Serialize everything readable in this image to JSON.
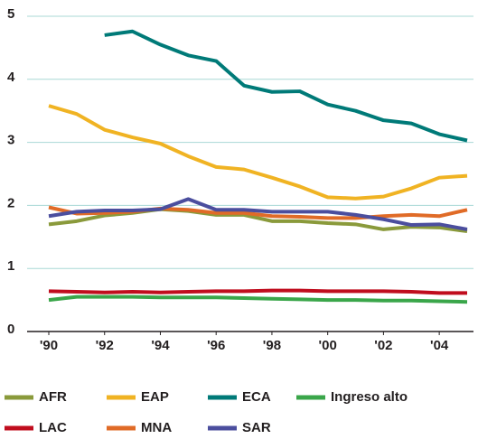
{
  "chart_data": {
    "type": "line",
    "x": [
      1990,
      1991,
      1992,
      1993,
      1994,
      1995,
      1996,
      1997,
      1998,
      1999,
      2000,
      2001,
      2002,
      2003,
      2004,
      2005
    ],
    "xlim": [
      1990,
      2005
    ],
    "xticks": [
      {
        "value": 1990,
        "label": "'90"
      },
      {
        "value": 1992,
        "label": "'92"
      },
      {
        "value": 1994,
        "label": "'94"
      },
      {
        "value": 1996,
        "label": "'96"
      },
      {
        "value": 1998,
        "label": "'98"
      },
      {
        "value": 2000,
        "label": "'00"
      },
      {
        "value": 2002,
        "label": "'02"
      },
      {
        "value": 2004,
        "label": "'04"
      }
    ],
    "ylim": [
      0,
      5
    ],
    "yticks": [
      0,
      1,
      2,
      3,
      4,
      5
    ],
    "grid": true,
    "series": [
      {
        "name": "AFR",
        "color": "#8a9a3b",
        "values": [
          1.7,
          1.75,
          1.84,
          1.88,
          1.94,
          1.91,
          1.85,
          1.85,
          1.75,
          1.75,
          1.72,
          1.7,
          1.62,
          1.66,
          1.65,
          1.59
        ]
      },
      {
        "name": "EAP",
        "color": "#f0b323",
        "values": [
          3.58,
          3.45,
          3.2,
          3.08,
          2.98,
          2.78,
          2.61,
          2.57,
          2.44,
          2.3,
          2.13,
          2.11,
          2.14,
          2.27,
          2.44,
          2.47
        ]
      },
      {
        "name": "ECA",
        "color": "#007a78",
        "values": [
          null,
          null,
          4.7,
          4.76,
          4.55,
          4.38,
          4.29,
          3.9,
          3.8,
          3.81,
          3.6,
          3.5,
          3.35,
          3.3,
          3.13,
          3.03
        ]
      },
      {
        "name": "Ingreso alto",
        "color": "#3aa64a",
        "values": [
          0.5,
          0.55,
          0.55,
          0.55,
          0.54,
          0.54,
          0.54,
          0.53,
          0.52,
          0.51,
          0.5,
          0.5,
          0.49,
          0.49,
          0.48,
          0.47
        ]
      },
      {
        "name": "LAC",
        "color": "#c00d1e",
        "values": [
          0.64,
          0.63,
          0.62,
          0.63,
          0.62,
          0.63,
          0.64,
          0.64,
          0.65,
          0.65,
          0.64,
          0.64,
          0.64,
          0.63,
          0.61,
          0.61
        ]
      },
      {
        "name": "MNA",
        "color": "#e06b27",
        "values": [
          1.97,
          1.87,
          1.88,
          1.9,
          1.95,
          1.93,
          1.88,
          1.88,
          1.83,
          1.82,
          1.8,
          1.8,
          1.83,
          1.85,
          1.83,
          1.93
        ]
      },
      {
        "name": "SAR",
        "color": "#4b4e9e",
        "values": [
          1.83,
          1.9,
          1.92,
          1.92,
          1.94,
          2.1,
          1.93,
          1.93,
          1.9,
          1.9,
          1.9,
          1.85,
          1.78,
          1.69,
          1.7,
          1.62
        ]
      }
    ]
  }
}
